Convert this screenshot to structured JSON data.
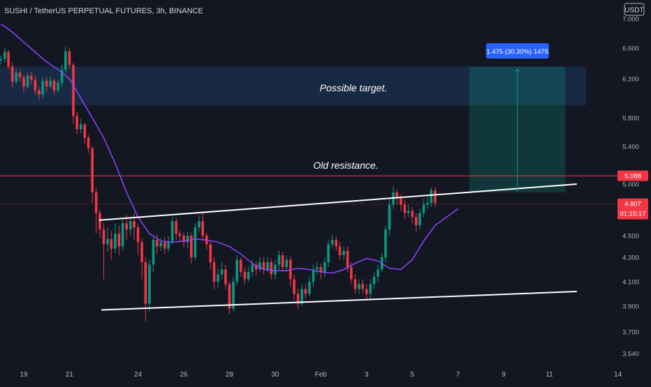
{
  "header": {
    "title": "SUSHI / TetherUS PERPETUAL FUTURES, 3h, BINANCE",
    "currency": "USDT"
  },
  "chart_data": {
    "type": "candlestick",
    "title": "SUSHI / TetherUS PERPETUAL FUTURES, 3h, BINANCE",
    "ylabel": "USDT",
    "ylim": [
      3.5,
      7.05
    ],
    "y_ticks": [
      "7.000",
      "6.600",
      "6.200",
      "5.800",
      "5.400",
      "5.000",
      "4.500",
      "4.300",
      "4.100",
      "3.900",
      "3.700",
      "3.540"
    ],
    "x_ticks": [
      "19",
      "21",
      "24",
      "26",
      "28",
      "30",
      "Feb",
      "3",
      "5",
      "7",
      "9",
      "11",
      "14"
    ],
    "x_tick_days": [
      19,
      21,
      24,
      26,
      28,
      30,
      32,
      34,
      36,
      38,
      40,
      42,
      45
    ],
    "x_tick_label_dates": [
      "Jan 19",
      "Jan 21",
      "Jan 24",
      "Jan 26",
      "Jan 28",
      "Jan 30",
      "Feb 1",
      "Feb 3",
      "Feb 5",
      "Feb 7",
      "Feb 9",
      "Feb 11",
      "Feb 14"
    ],
    "price_labels": [
      {
        "value": "5.088",
        "color": "#f23645"
      },
      {
        "value": "4.807",
        "sub": "01:15:17",
        "color": "#f23645"
      }
    ],
    "annotations": {
      "target_label": "Possible target.",
      "resistance_label": "Old resistance.",
      "measure_label": "1.475 (30.30%) 1475"
    },
    "zones": {
      "target_zone": {
        "x_start_day": 17.9,
        "x_end_day": 43.6,
        "y_low": 5.93,
        "y_high": 6.36
      },
      "measure_box": {
        "x_start_day": 38.5,
        "x_end_day": 42.7,
        "y_low": 4.92,
        "y_high": 6.36,
        "arrow_x_day": 40.6
      }
    },
    "lines": {
      "resistance": 5.088,
      "current_price": 4.807,
      "upper_trendline": {
        "x_start_day": 22.3,
        "y_start": 4.65,
        "x_end_day": 43.2,
        "y_end": 5.0
      },
      "lower_trendline": {
        "x_start_day": 22.4,
        "y_start": 3.87,
        "x_end_day": 43.2,
        "y_end": 4.02
      }
    },
    "ma": {
      "color": "#8e44ff",
      "points": [
        [
          18.0,
          6.93
        ],
        [
          18.5,
          6.82
        ],
        [
          19.0,
          6.68
        ],
        [
          19.5,
          6.55
        ],
        [
          20.0,
          6.42
        ],
        [
          20.5,
          6.32
        ],
        [
          21.0,
          6.2
        ],
        [
          21.5,
          6.0
        ],
        [
          22.0,
          5.8
        ],
        [
          22.5,
          5.52
        ],
        [
          23.0,
          5.22
        ],
        [
          23.5,
          4.92
        ],
        [
          24.0,
          4.68
        ],
        [
          24.5,
          4.52
        ],
        [
          25.0,
          4.45
        ],
        [
          25.5,
          4.44
        ],
        [
          26.0,
          4.45
        ],
        [
          26.5,
          4.47
        ],
        [
          27.0,
          4.46
        ],
        [
          27.5,
          4.44
        ],
        [
          28.0,
          4.4
        ],
        [
          28.5,
          4.33
        ],
        [
          29.0,
          4.25
        ],
        [
          29.5,
          4.2
        ],
        [
          30.0,
          4.19
        ],
        [
          30.5,
          4.19
        ],
        [
          31.0,
          4.21
        ],
        [
          31.5,
          4.2
        ],
        [
          32.0,
          4.18
        ],
        [
          32.5,
          4.17
        ],
        [
          33.0,
          4.2
        ],
        [
          33.5,
          4.25
        ],
        [
          34.0,
          4.29
        ],
        [
          34.5,
          4.27
        ],
        [
          35.0,
          4.21
        ],
        [
          35.5,
          4.2
        ],
        [
          36.0,
          4.28
        ],
        [
          36.5,
          4.45
        ],
        [
          37.0,
          4.6
        ],
        [
          37.5,
          4.68
        ],
        [
          38.0,
          4.76
        ]
      ]
    },
    "candles": [
      [
        18.0,
        6.44,
        6.46,
        6.5,
        6.38
      ],
      [
        18.17,
        6.46,
        6.55,
        6.6,
        6.41
      ],
      [
        18.33,
        6.55,
        6.36,
        6.58,
        6.32
      ],
      [
        18.5,
        6.36,
        6.17,
        6.42,
        6.11
      ],
      [
        18.67,
        6.17,
        6.28,
        6.33,
        6.15
      ],
      [
        18.83,
        6.28,
        6.22,
        6.31,
        6.17
      ],
      [
        19.0,
        6.22,
        6.12,
        6.25,
        6.06
      ],
      [
        19.17,
        6.12,
        6.24,
        6.28,
        6.1
      ],
      [
        19.33,
        6.24,
        6.19,
        6.29,
        6.14
      ],
      [
        19.5,
        6.19,
        6.08,
        6.24,
        6.04
      ],
      [
        19.67,
        6.08,
        6.04,
        6.12,
        5.98
      ],
      [
        19.83,
        6.04,
        6.18,
        6.22,
        6.0
      ],
      [
        20.0,
        6.18,
        6.12,
        6.22,
        6.06
      ],
      [
        20.17,
        6.12,
        6.18,
        6.23,
        6.1
      ],
      [
        20.33,
        6.18,
        6.08,
        6.2,
        6.04
      ],
      [
        20.5,
        6.08,
        6.16,
        6.19,
        6.06
      ],
      [
        20.67,
        6.16,
        6.32,
        6.38,
        6.12
      ],
      [
        20.83,
        6.32,
        6.56,
        6.63,
        6.28
      ],
      [
        21.0,
        6.56,
        6.38,
        6.6,
        6.33
      ],
      [
        21.17,
        6.38,
        5.82,
        6.41,
        5.72
      ],
      [
        21.33,
        5.82,
        5.64,
        5.86,
        5.57
      ],
      [
        21.5,
        5.64,
        5.71,
        5.79,
        5.58
      ],
      [
        21.67,
        5.71,
        5.52,
        5.73,
        5.44
      ],
      [
        21.83,
        5.52,
        5.38,
        5.56,
        5.33
      ],
      [
        22.0,
        5.38,
        4.92,
        5.41,
        4.82
      ],
      [
        22.17,
        4.92,
        4.72,
        4.96,
        4.52
      ],
      [
        22.33,
        4.72,
        4.56,
        4.75,
        4.48
      ],
      [
        22.5,
        4.56,
        4.42,
        4.62,
        4.12
      ],
      [
        22.67,
        4.42,
        4.47,
        4.58,
        4.35
      ],
      [
        22.83,
        4.47,
        4.38,
        4.55,
        4.28
      ],
      [
        23.0,
        4.38,
        4.52,
        4.62,
        4.34
      ],
      [
        23.17,
        4.52,
        4.4,
        4.6,
        4.32
      ],
      [
        23.33,
        4.4,
        4.62,
        4.66,
        4.36
      ],
      [
        23.5,
        4.62,
        4.56,
        4.7,
        4.46
      ],
      [
        23.67,
        4.56,
        4.64,
        4.68,
        4.5
      ],
      [
        23.83,
        4.64,
        4.58,
        4.72,
        4.46
      ],
      [
        24.0,
        4.58,
        4.44,
        4.62,
        4.32
      ],
      [
        24.17,
        4.44,
        4.26,
        4.47,
        4.12
      ],
      [
        24.33,
        4.26,
        3.92,
        4.3,
        3.78
      ],
      [
        24.5,
        3.92,
        4.24,
        4.28,
        3.86
      ],
      [
        24.67,
        4.24,
        4.46,
        4.5,
        4.18
      ],
      [
        24.83,
        4.46,
        4.4,
        4.51,
        4.33
      ],
      [
        25.0,
        4.4,
        4.44,
        4.48,
        4.36
      ],
      [
        25.17,
        4.44,
        4.38,
        4.49,
        4.33
      ],
      [
        25.33,
        4.38,
        4.45,
        4.5,
        4.35
      ],
      [
        25.5,
        4.45,
        4.64,
        4.68,
        4.42
      ],
      [
        25.67,
        4.64,
        4.52,
        4.67,
        4.46
      ],
      [
        25.83,
        4.52,
        4.5,
        4.55,
        4.44
      ],
      [
        26.0,
        4.5,
        4.44,
        4.53,
        4.39
      ],
      [
        26.17,
        4.44,
        4.5,
        4.54,
        4.38
      ],
      [
        26.33,
        4.5,
        4.3,
        4.53,
        4.25
      ],
      [
        26.5,
        4.3,
        4.58,
        4.62,
        4.28
      ],
      [
        26.67,
        4.58,
        4.64,
        4.7,
        4.54
      ],
      [
        26.83,
        4.64,
        4.5,
        4.73,
        4.45
      ],
      [
        27.0,
        4.5,
        4.42,
        4.53,
        4.37
      ],
      [
        27.17,
        4.42,
        4.26,
        4.45,
        4.2
      ],
      [
        27.33,
        4.26,
        4.1,
        4.3,
        4.04
      ],
      [
        27.5,
        4.1,
        4.16,
        4.21,
        4.05
      ],
      [
        27.67,
        4.16,
        4.2,
        4.26,
        4.12
      ],
      [
        27.83,
        4.2,
        4.08,
        4.24,
        4.04
      ],
      [
        28.0,
        4.08,
        3.88,
        4.1,
        3.84
      ],
      [
        28.17,
        3.88,
        4.1,
        4.14,
        3.86
      ],
      [
        28.33,
        4.1,
        4.28,
        4.32,
        4.07
      ],
      [
        28.5,
        4.28,
        4.18,
        4.3,
        4.14
      ],
      [
        28.67,
        4.18,
        4.12,
        4.22,
        4.08
      ],
      [
        28.83,
        4.12,
        4.18,
        4.22,
        4.1
      ],
      [
        29.0,
        4.18,
        4.24,
        4.28,
        4.14
      ],
      [
        29.17,
        4.24,
        4.2,
        4.27,
        4.15
      ],
      [
        29.33,
        4.2,
        4.26,
        4.3,
        4.18
      ],
      [
        29.5,
        4.26,
        4.2,
        4.3,
        4.16
      ],
      [
        29.67,
        4.2,
        4.26,
        4.3,
        4.18
      ],
      [
        29.83,
        4.26,
        4.16,
        4.29,
        4.12
      ],
      [
        30.0,
        4.16,
        4.24,
        4.28,
        4.12
      ],
      [
        30.17,
        4.24,
        4.32,
        4.36,
        4.2
      ],
      [
        30.33,
        4.32,
        4.22,
        4.35,
        4.18
      ],
      [
        30.5,
        4.22,
        4.28,
        4.31,
        4.18
      ],
      [
        30.67,
        4.28,
        4.12,
        4.31,
        4.06
      ],
      [
        30.83,
        4.12,
        4.0,
        4.16,
        3.95
      ],
      [
        31.0,
        4.0,
        3.92,
        4.04,
        3.88
      ],
      [
        31.17,
        3.92,
        4.04,
        4.08,
        3.9
      ],
      [
        31.33,
        4.04,
        4.0,
        4.08,
        3.96
      ],
      [
        31.5,
        4.0,
        4.1,
        4.14,
        3.98
      ],
      [
        31.67,
        4.1,
        4.2,
        4.24,
        4.06
      ],
      [
        31.83,
        4.2,
        4.22,
        4.26,
        4.16
      ],
      [
        32.0,
        4.22,
        4.18,
        4.25,
        4.12
      ],
      [
        32.17,
        4.18,
        4.26,
        4.3,
        4.14
      ],
      [
        32.33,
        4.26,
        4.42,
        4.46,
        4.22
      ],
      [
        32.5,
        4.42,
        4.46,
        4.51,
        4.38
      ],
      [
        32.67,
        4.46,
        4.4,
        4.49,
        4.36
      ],
      [
        32.83,
        4.4,
        4.32,
        4.44,
        4.28
      ],
      [
        33.0,
        4.32,
        4.36,
        4.4,
        4.28
      ],
      [
        33.17,
        4.36,
        4.22,
        4.4,
        4.18
      ],
      [
        33.33,
        4.22,
        4.12,
        4.26,
        4.08
      ],
      [
        33.5,
        4.12,
        4.04,
        4.16,
        4.0
      ],
      [
        33.67,
        4.04,
        4.08,
        4.12,
        4.0
      ],
      [
        33.83,
        4.08,
        4.04,
        4.12,
        4.0
      ],
      [
        34.0,
        4.04,
        4.0,
        4.08,
        3.95
      ],
      [
        34.17,
        4.0,
        4.08,
        4.12,
        3.96
      ],
      [
        34.33,
        4.08,
        4.14,
        4.18,
        4.04
      ],
      [
        34.5,
        4.14,
        4.2,
        4.24,
        4.1
      ],
      [
        34.67,
        4.2,
        4.3,
        4.34,
        4.18
      ],
      [
        34.83,
        4.3,
        4.56,
        4.6,
        4.26
      ],
      [
        35.0,
        4.56,
        4.8,
        4.86,
        4.5
      ],
      [
        35.17,
        4.8,
        4.92,
        4.98,
        4.76
      ],
      [
        35.33,
        4.92,
        4.86,
        4.95,
        4.8
      ],
      [
        35.5,
        4.86,
        4.8,
        4.9,
        4.74
      ],
      [
        35.67,
        4.8,
        4.72,
        4.85,
        4.66
      ],
      [
        35.83,
        4.72,
        4.74,
        4.8,
        4.68
      ],
      [
        36.0,
        4.74,
        4.68,
        4.78,
        4.62
      ],
      [
        36.17,
        4.68,
        4.6,
        4.72,
        4.54
      ],
      [
        36.33,
        4.6,
        4.72,
        4.76,
        4.56
      ],
      [
        36.5,
        4.72,
        4.8,
        4.86,
        4.68
      ],
      [
        36.67,
        4.8,
        4.82,
        4.88,
        4.76
      ],
      [
        36.83,
        4.82,
        4.94,
        4.97,
        4.78
      ],
      [
        37.0,
        4.94,
        4.82,
        4.97,
        4.78
      ]
    ]
  }
}
